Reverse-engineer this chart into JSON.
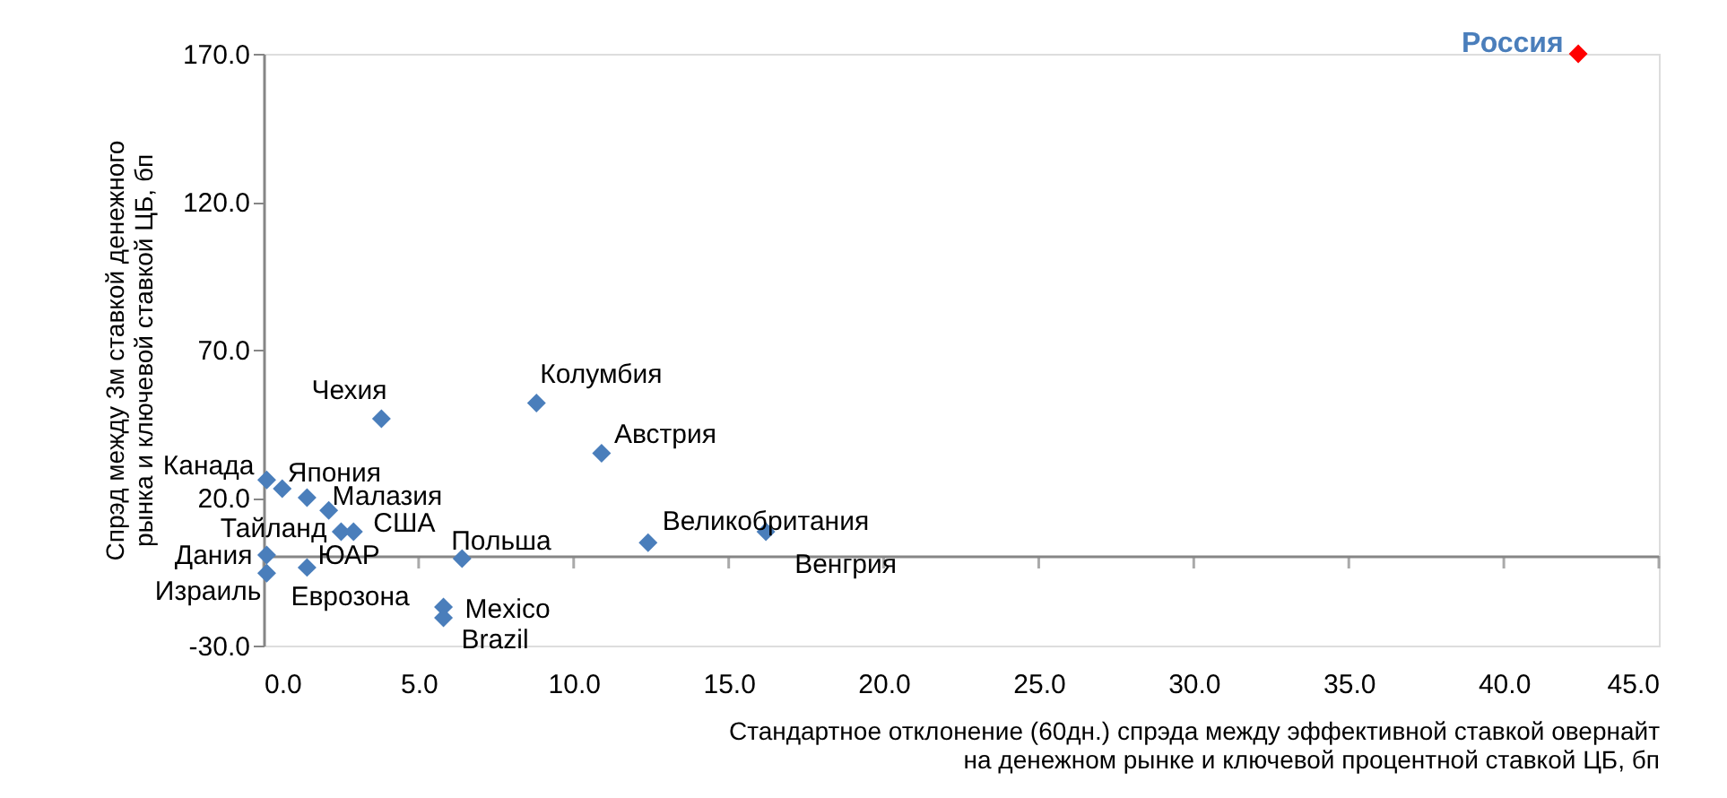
{
  "chart_data": {
    "type": "scatter",
    "marker": "diamond",
    "grid": false,
    "xlabel": "Стандартное отклонение (60дн.) спрэда между эффективной ставкой овернайт\nна денежном рынке и ключевой процентной ставкой ЦБ, бп",
    "ylabel": "Спрэд между 3м ставкой денежного\nрынка и ключевой ставкой ЦБ, бп",
    "x": [
      42.4,
      3.8,
      8.8,
      10.9,
      0.1,
      0.6,
      1.4,
      2.1,
      2.5,
      2.9,
      0.1,
      0.1,
      1.4,
      6.4,
      5.8,
      5.8,
      12.4,
      16.2
    ],
    "values": [
      170,
      46.7,
      52,
      35,
      26,
      23,
      20,
      15.7,
      8.5,
      8.5,
      0.6,
      -5.5,
      -3.6,
      -0.6,
      -17,
      -20.6,
      4.8,
      8.5
    ],
    "colors": [
      "#ff0000",
      "#4a7ebb",
      "#4a7ebb",
      "#4a7ebb",
      "#4a7ebb",
      "#4a7ebb",
      "#4a7ebb",
      "#4a7ebb",
      "#4a7ebb",
      "#4a7ebb",
      "#4a7ebb",
      "#4a7ebb",
      "#4a7ebb",
      "#4a7ebb",
      "#4a7ebb",
      "#4a7ebb",
      "#4a7ebb",
      "#4a7ebb"
    ],
    "annotations": [
      {
        "text": "Россия",
        "x": 42.4,
        "y": 170
      },
      {
        "text": "Чехия",
        "x": 3.8,
        "y": 46.7
      },
      {
        "text": "Колумбия",
        "x": 8.8,
        "y": 52
      },
      {
        "text": "Австрия",
        "x": 10.9,
        "y": 35
      },
      {
        "text": "Канада",
        "x": 0.1,
        "y": 26
      },
      {
        "text": "Япония",
        "x": 0.6,
        "y": 23
      },
      {
        "text": "ЮАР",
        "x": 1.4,
        "y": 20
      },
      {
        "text": "Малазия",
        "x": 2.1,
        "y": 15.7
      },
      {
        "text": "Тайланд",
        "x": 2.5,
        "y": 8.5
      },
      {
        "text": "США",
        "x": 2.9,
        "y": 8.5
      },
      {
        "text": "Дания",
        "x": 0.1,
        "y": 0.6
      },
      {
        "text": "Израиль",
        "x": 0.1,
        "y": -5.5
      },
      {
        "text": "Еврозона",
        "x": 1.4,
        "y": -3.6
      },
      {
        "text": "Польша",
        "x": 6.4,
        "y": -0.6
      },
      {
        "text": "Mexico",
        "x": 5.8,
        "y": -17
      },
      {
        "text": "Brazil",
        "x": 5.8,
        "y": -20.6
      },
      {
        "text": "Великобритания",
        "x": 12.4,
        "y": 4.8
      },
      {
        "text": "Венгрия",
        "x": 16.2,
        "y": 8.5
      }
    ],
    "xlim": [
      0,
      45
    ],
    "xticks": [
      {
        "value": 0,
        "label": "0.0"
      },
      {
        "value": 5,
        "label": "5.0"
      },
      {
        "value": 10,
        "label": "10.0"
      },
      {
        "value": 15,
        "label": "15.0"
      },
      {
        "value": 20,
        "label": "20.0"
      },
      {
        "value": 25,
        "label": "25.0"
      },
      {
        "value": 30,
        "label": "30.0"
      },
      {
        "value": 35,
        "label": "35.0"
      },
      {
        "value": 40,
        "label": "40.0"
      },
      {
        "value": 45,
        "label": "45.0"
      }
    ],
    "ylim": [
      -30,
      170
    ],
    "yticks": [
      {
        "value": -30,
        "label": "-30.0"
      },
      {
        "value": 20,
        "label": "20.0"
      },
      {
        "value": 70,
        "label": "70.0"
      },
      {
        "value": 120,
        "label": "120.0"
      },
      {
        "value": 170,
        "label": "170.0"
      }
    ]
  }
}
